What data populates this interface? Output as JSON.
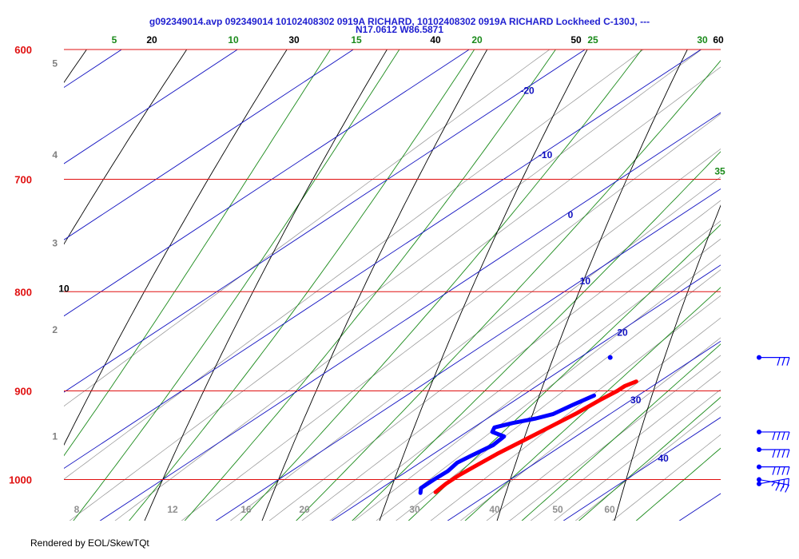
{
  "title_line1": "g092349014.avp 092349014 10102408302 0919A RICHARD, 10102408302 0919A RICHARD Lockheed C-130J, ---",
  "title_line2": "N17.0612 W86.5871",
  "footer": "Rendered by EOL/SkewTQt",
  "colors": {
    "isobar": "#e01010",
    "isotherm": "#1010c0",
    "dry_adiabat": "#000000",
    "moist_adiabat": "#1a8a1a",
    "mixing_ratio": "#909090",
    "temperature_trace": "#ff0000",
    "dewpoint_trace": "#0000ff",
    "wind_barb": "#0000ff",
    "title": "#1f1fd0"
  },
  "chart_data": {
    "type": "skew-t",
    "pressure_axis": {
      "labels": [
        "600",
        "700",
        "800",
        "900",
        "1000"
      ],
      "range_hPa": [
        600,
        1050
      ]
    },
    "altitude_labels": [
      "1",
      "2",
      "3",
      "4",
      "5"
    ],
    "isotherm_labels": [
      "-20",
      "-10",
      "0",
      "10",
      "20",
      "30",
      "40"
    ],
    "dry_adiabat_labels": [
      "10",
      "20",
      "30",
      "40",
      "50",
      "60"
    ],
    "moist_adiabat_labels": [
      "5",
      "10",
      "15",
      "20",
      "25",
      "30",
      "35"
    ],
    "mixing_ratio_labels": [
      "8",
      "12",
      "16",
      "20",
      "30",
      "40",
      "50",
      "60"
    ],
    "temperature_trace": {
      "name": "temperature",
      "pressure": [
        1015,
        1005,
        995,
        985,
        970,
        955,
        940,
        925,
        910,
        900,
        895,
        890
      ],
      "temp_c": [
        25.2,
        25.0,
        25.0,
        25.2,
        25.5,
        26.0,
        26.5,
        27.0,
        27.3,
        27.6,
        27.6,
        28.0
      ]
    },
    "dewpoint_trace": {
      "name": "dewpoint",
      "pressure": [
        1016,
        1010,
        1000,
        990,
        980,
        972,
        960,
        950,
        945,
        940,
        935,
        930,
        925,
        915,
        905
      ],
      "dewpt_c": [
        24.0,
        23.4,
        23.4,
        23.5,
        23.2,
        23.5,
        24.0,
        23.8,
        22.2,
        21.8,
        22.8,
        24.2,
        25.1,
        25.6,
        26.2
      ]
    },
    "isolated_dewpoint_point": {
      "pressure": 865,
      "dewpt_c": 22.6
    },
    "wind_barbs": [
      {
        "pressure": 865,
        "direction_deg": 90,
        "speed_kt": 30
      },
      {
        "pressure": 945,
        "direction_deg": 90,
        "speed_kt": 40
      },
      {
        "pressure": 965,
        "direction_deg": 90,
        "speed_kt": 40
      },
      {
        "pressure": 985,
        "direction_deg": 90,
        "speed_kt": 40
      },
      {
        "pressure": 1000,
        "direction_deg": 100,
        "speed_kt": 35
      },
      {
        "pressure": 1005,
        "direction_deg": 80,
        "speed_kt": 25
      }
    ]
  }
}
